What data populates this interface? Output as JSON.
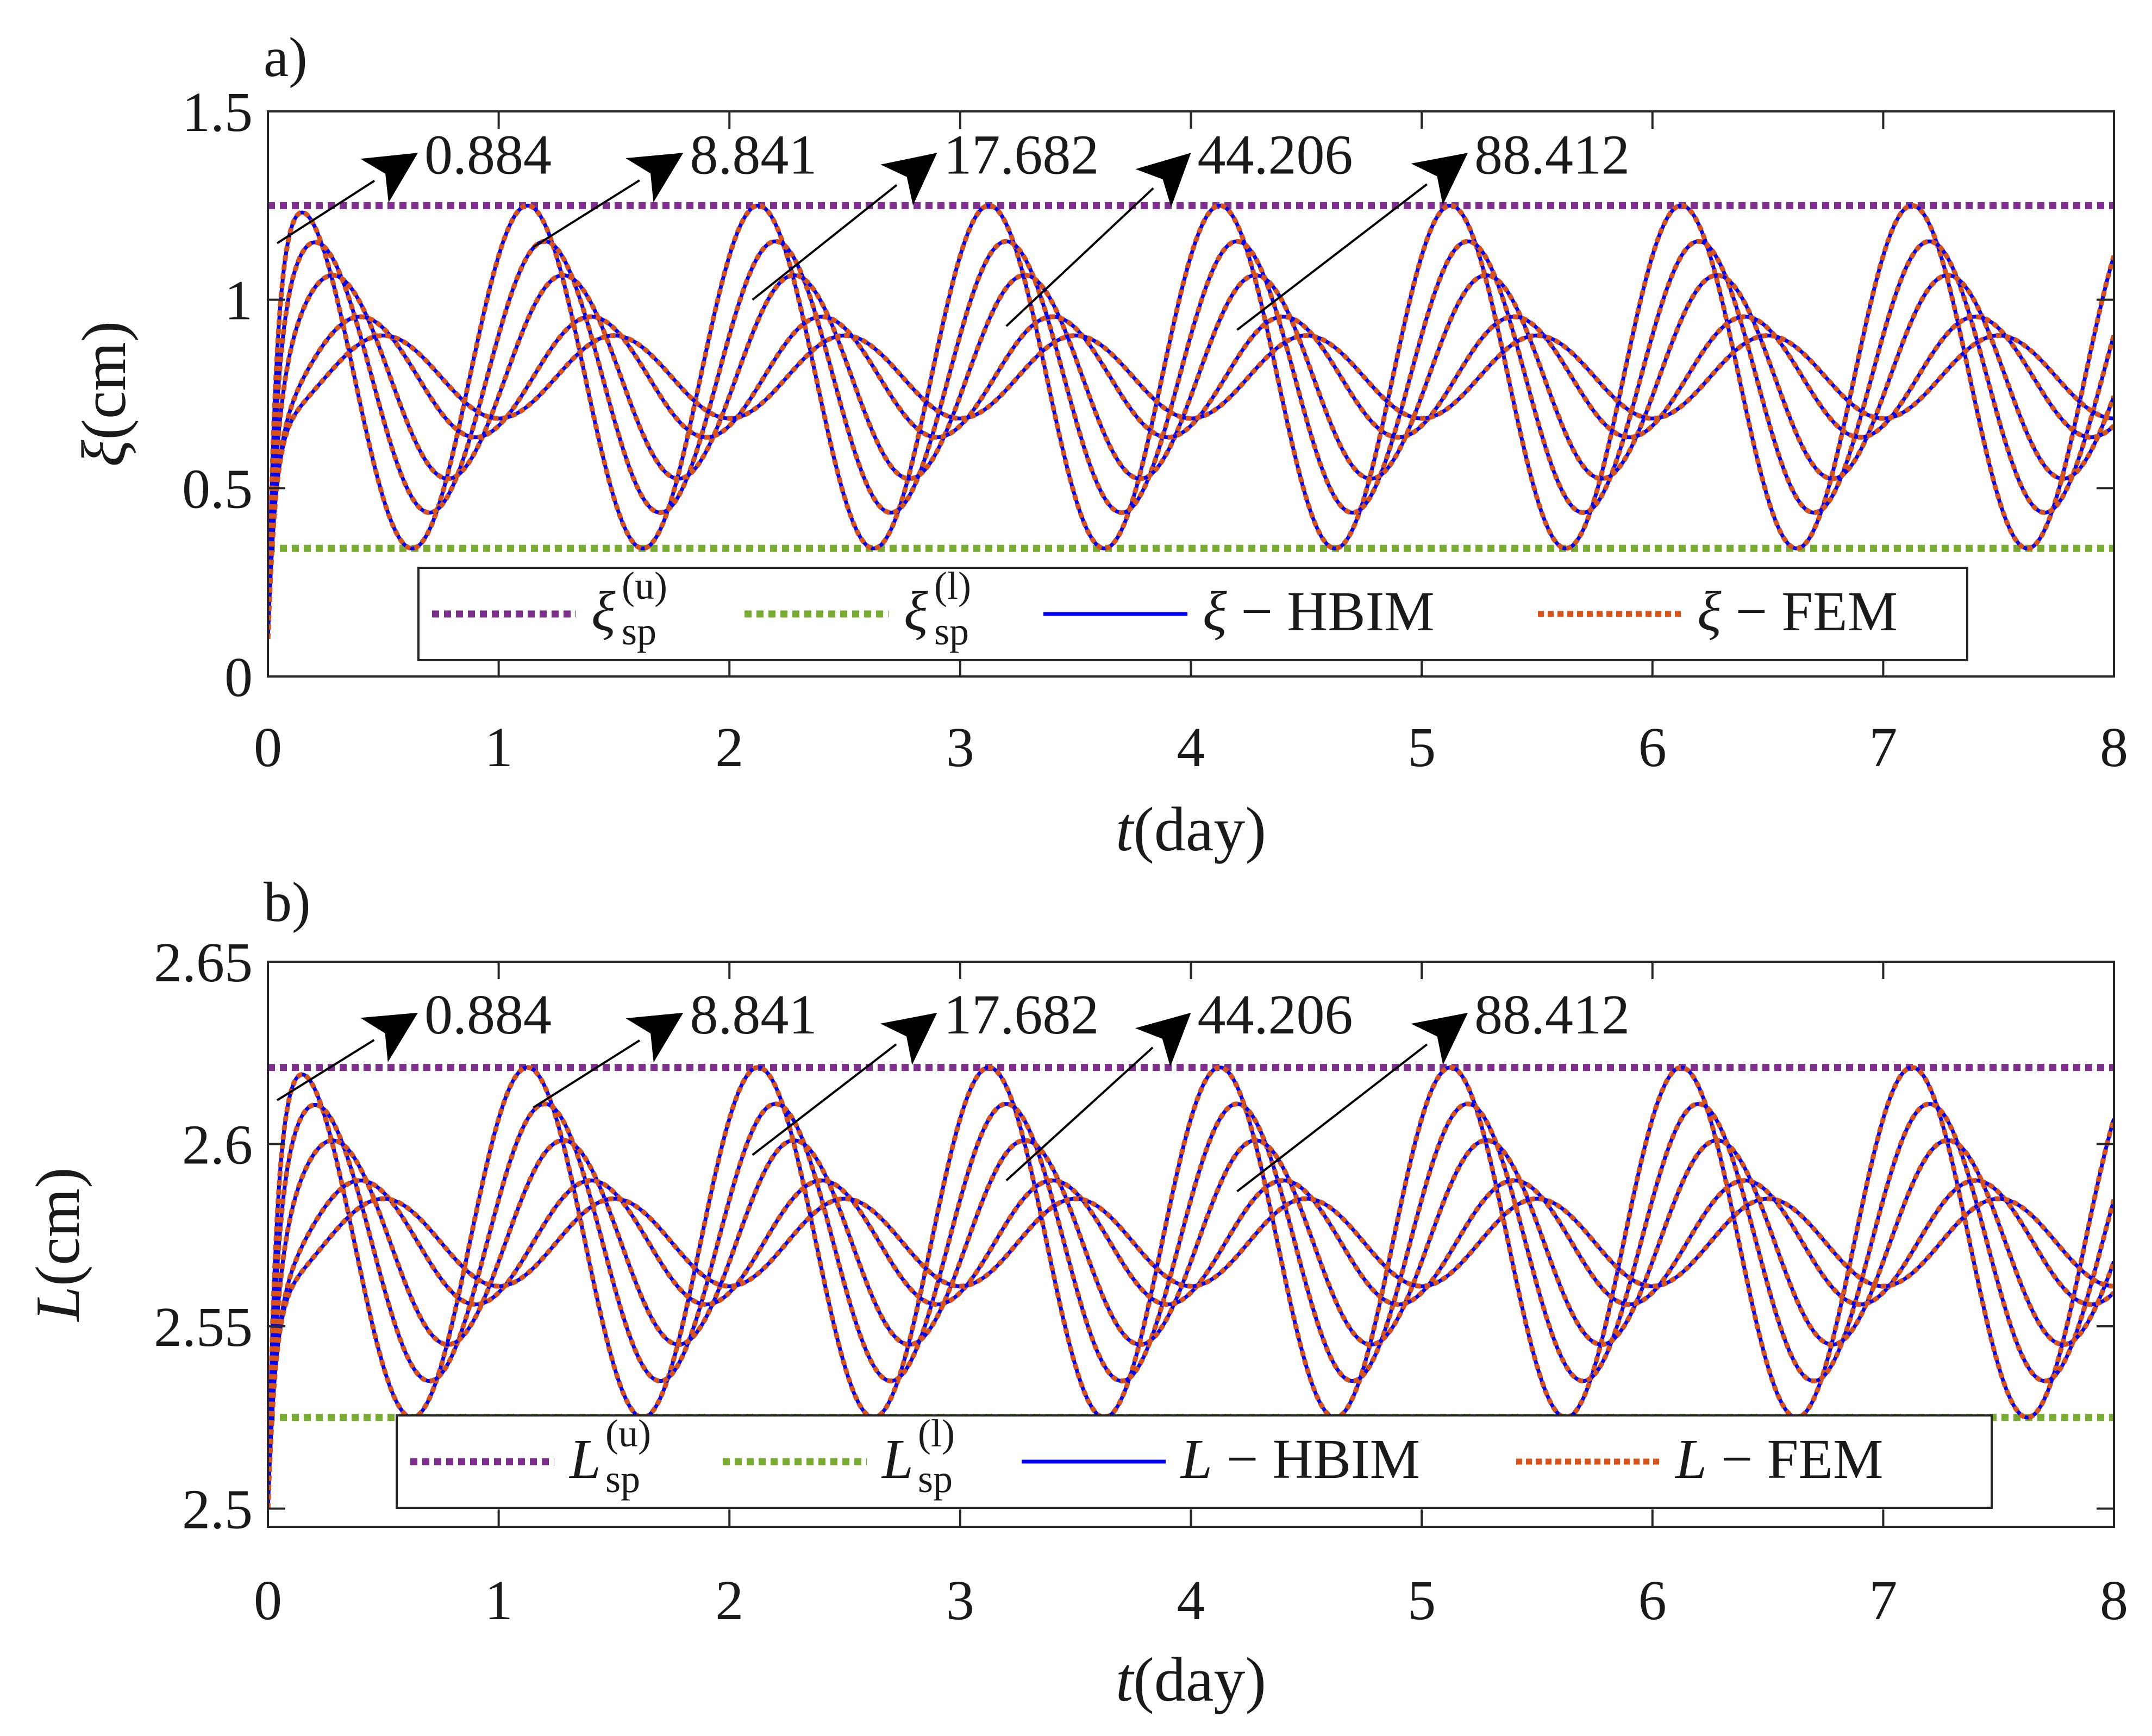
{
  "colors": {
    "upper": "#7e2f8e",
    "lower": "#77ac30",
    "hbim": "#0000ff",
    "fem": "#d95319",
    "axis": "#262626"
  },
  "chart_data": [
    {
      "type": "line",
      "panel_label": "a)",
      "ylabel_symbol": "ξ",
      "ylabel_unit": "(cm)",
      "xlabel_symbol": "t",
      "xlabel_unit": "(day)",
      "xlim": [
        0,
        8
      ],
      "ylim": [
        0,
        1.5
      ],
      "xticks": [
        0,
        1,
        2,
        3,
        4,
        5,
        6,
        7,
        8
      ],
      "xtick_labels": [
        "0",
        "1",
        "2",
        "3",
        "4",
        "5",
        "6",
        "7",
        "8"
      ],
      "yticks": [
        0,
        0.5,
        1,
        1.5
      ],
      "ytick_labels": [
        "0",
        "0.5",
        "1",
        "1.5"
      ],
      "upper_bound": 1.25,
      "lower_bound": 0.34,
      "initial_value": 0.1,
      "period_days": 1.0,
      "series_params": [
        {
          "param": "0.884",
          "amplitude": 0.455,
          "phase_day": 0.125
        },
        {
          "param": "8.841",
          "amplitude": 0.36,
          "phase_day": 0.2
        },
        {
          "param": "17.682",
          "amplitude": 0.27,
          "phase_day": 0.28
        },
        {
          "param": "44.206",
          "amplitude": 0.16,
          "phase_day": 0.4
        },
        {
          "param": "88.412",
          "amplitude": 0.11,
          "phase_day": 0.5
        }
      ],
      "arrow_labels": [
        "0.884",
        "8.841",
        "17.682",
        "44.206",
        "88.412"
      ],
      "arrow_tails": [
        [
          0.04,
          1.15
        ],
        [
          1.15,
          1.14
        ],
        [
          2.1,
          1.0
        ],
        [
          3.2,
          0.93
        ],
        [
          4.2,
          0.92
        ]
      ],
      "arrow_heads": [
        [
          0.65,
          1.39
        ],
        [
          1.8,
          1.39
        ],
        [
          2.9,
          1.39
        ],
        [
          4.0,
          1.39
        ],
        [
          5.2,
          1.39
        ]
      ],
      "legend": {
        "upper": {
          "symbol": "ξ",
          "sub": "sp",
          "sup": "(u)"
        },
        "lower": {
          "symbol": "ξ",
          "sub": "sp",
          "sup": "(l)"
        },
        "hbim": {
          "symbol": "ξ",
          "rest": " − HBIM"
        },
        "fem": {
          "symbol": "ξ",
          "rest": " − FEM"
        }
      }
    },
    {
      "type": "line",
      "panel_label": "b)",
      "ylabel_symbol": "L",
      "ylabel_unit": "(cm)",
      "xlabel_symbol": "t",
      "xlabel_unit": "(day)",
      "xlim": [
        0,
        8
      ],
      "ylim": [
        2.495,
        2.65
      ],
      "xticks": [
        0,
        1,
        2,
        3,
        4,
        5,
        6,
        7,
        8
      ],
      "xtick_labels": [
        "0",
        "1",
        "2",
        "3",
        "4",
        "5",
        "6",
        "7",
        "8"
      ],
      "yticks": [
        2.5,
        2.55,
        2.6,
        2.65
      ],
      "ytick_labels": [
        "2.5",
        "2.55",
        "2.6",
        "2.65"
      ],
      "upper_bound": 2.621,
      "lower_bound": 2.525,
      "initial_value": 2.5,
      "period_days": 1.0,
      "series_params": [
        {
          "param": "0.884",
          "amplitude": 0.048,
          "phase_day": 0.125
        },
        {
          "param": "8.841",
          "amplitude": 0.038,
          "phase_day": 0.2
        },
        {
          "param": "17.682",
          "amplitude": 0.028,
          "phase_day": 0.28
        },
        {
          "param": "44.206",
          "amplitude": 0.017,
          "phase_day": 0.4
        },
        {
          "param": "88.412",
          "amplitude": 0.012,
          "phase_day": 0.5
        }
      ],
      "arrow_labels": [
        "0.884",
        "8.841",
        "17.682",
        "44.206",
        "88.412"
      ],
      "arrow_tails": [
        [
          0.04,
          2.612
        ],
        [
          1.15,
          2.61
        ],
        [
          2.1,
          2.597
        ],
        [
          3.2,
          2.59
        ],
        [
          4.2,
          2.587
        ]
      ],
      "arrow_heads": [
        [
          0.65,
          2.636
        ],
        [
          1.8,
          2.636
        ],
        [
          2.9,
          2.636
        ],
        [
          4.0,
          2.636
        ],
        [
          5.2,
          2.636
        ]
      ],
      "legend": {
        "upper": {
          "symbol": "L",
          "sub": "sp",
          "sup": "(u)"
        },
        "lower": {
          "symbol": "L",
          "sub": "sp",
          "sup": "(l)"
        },
        "hbim": {
          "symbol": "L",
          "rest": " − HBIM"
        },
        "fem": {
          "symbol": "L",
          "rest": " − FEM"
        }
      }
    }
  ]
}
